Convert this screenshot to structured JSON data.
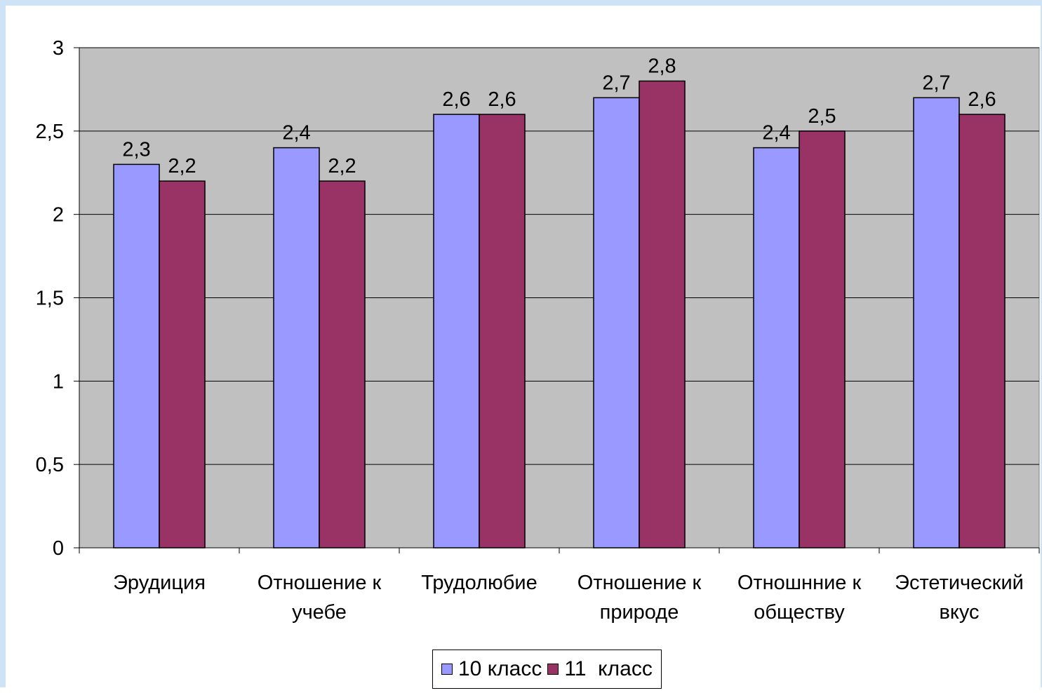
{
  "chart_data": {
    "type": "bar",
    "categories": [
      "Эрудиция",
      "Отношение к учебе",
      "Трудолюбие",
      "Отношение к природе",
      "Отношнние к обществу",
      "Эстетический вкус"
    ],
    "category_lines": [
      [
        "Эрудиция"
      ],
      [
        "Отношение к",
        "учебе"
      ],
      [
        "Трудолюбие"
      ],
      [
        "Отношение к",
        "природе"
      ],
      [
        "Отношнние к",
        "обществу"
      ],
      [
        "Эстетический",
        "вкус"
      ]
    ],
    "series": [
      {
        "name": "10 класс",
        "values": [
          2.3,
          2.4,
          2.6,
          2.7,
          2.4,
          2.7
        ],
        "labels": [
          "2,3",
          "2,4",
          "2,6",
          "2,7",
          "2,4",
          "2,7"
        ],
        "color": "#9999ff"
      },
      {
        "name": "11  класс",
        "values": [
          2.2,
          2.2,
          2.6,
          2.8,
          2.5,
          2.6
        ],
        "labels": [
          "2,2",
          "2,2",
          "2,6",
          "2,8",
          "2,5",
          "2,6"
        ],
        "color": "#993366"
      }
    ],
    "ylim": [
      0,
      3
    ],
    "yticks": [
      0,
      0.5,
      1,
      1.5,
      2,
      2.5,
      3
    ],
    "ytick_labels": [
      "0",
      "0,5",
      "1",
      "1,5",
      "2",
      "2,5",
      "3"
    ],
    "grid": true,
    "plot_background": "#c0c0c0",
    "legend_position": "bottom",
    "title": "",
    "xlabel": "",
    "ylabel": ""
  }
}
